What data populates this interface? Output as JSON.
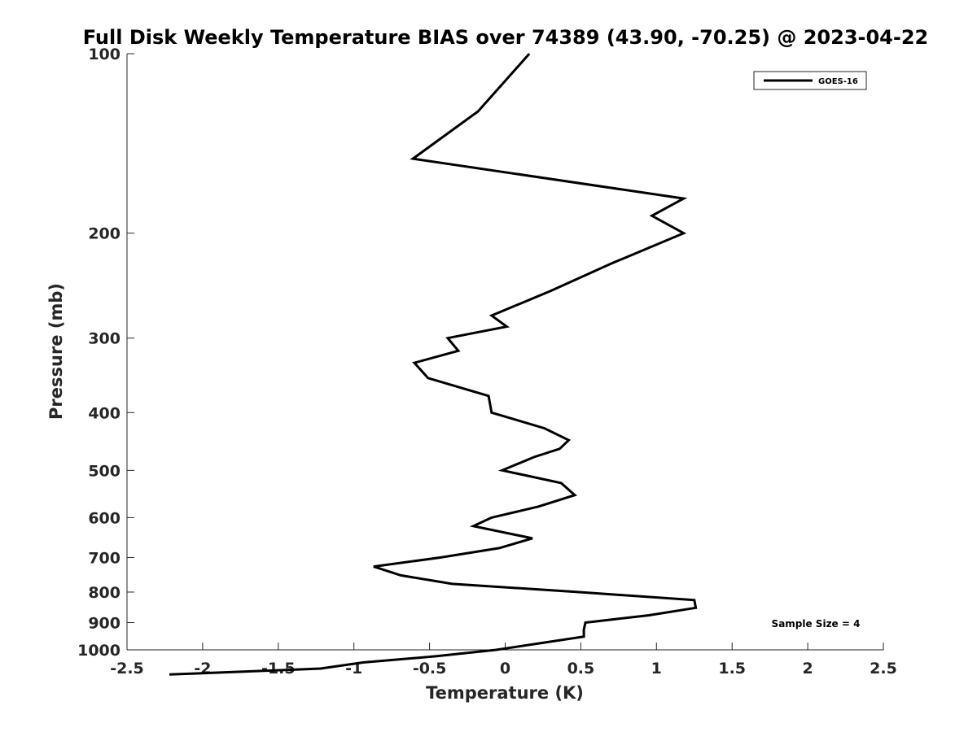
{
  "chart_data": {
    "type": "line",
    "title": "Full Disk Weekly Temperature BIAS over 74389 (43.90, -70.25) @ 2023-04-22",
    "xlabel": "Temperature (K)",
    "ylabel": "Pressure (mb)",
    "xlim": [
      -2.5,
      2.5
    ],
    "ylim": [
      100,
      1000
    ],
    "y_scale": "log",
    "y_reversed": true,
    "grid": false,
    "legend_position": "top-right",
    "x_ticks": [
      {
        "value": -2.5,
        "label": "-2.5"
      },
      {
        "value": -2,
        "label": "-2"
      },
      {
        "value": -1.5,
        "label": "-1.5"
      },
      {
        "value": -1,
        "label": "-1"
      },
      {
        "value": -0.5,
        "label": "-0.5"
      },
      {
        "value": 0,
        "label": "0"
      },
      {
        "value": 0.5,
        "label": "0.5"
      },
      {
        "value": 1,
        "label": "1"
      },
      {
        "value": 1.5,
        "label": "1.5"
      },
      {
        "value": 2,
        "label": "2"
      },
      {
        "value": 2.5,
        "label": "2.5"
      }
    ],
    "y_ticks": [
      {
        "value": 100,
        "label": "100"
      },
      {
        "value": 200,
        "label": "200"
      },
      {
        "value": 300,
        "label": "300"
      },
      {
        "value": 400,
        "label": "400"
      },
      {
        "value": 500,
        "label": "500"
      },
      {
        "value": 600,
        "label": "600"
      },
      {
        "value": 700,
        "label": "700"
      },
      {
        "value": 800,
        "label": "800"
      },
      {
        "value": 900,
        "label": "900"
      },
      {
        "value": 1000,
        "label": "1000"
      }
    ],
    "series": [
      {
        "name": "GOES-16",
        "color": "#000000",
        "points": [
          {
            "x": 0.16,
            "y": 100
          },
          {
            "x": -0.18,
            "y": 125
          },
          {
            "x": -0.61,
            "y": 150
          },
          {
            "x": 1.18,
            "y": 175
          },
          {
            "x": 0.97,
            "y": 187
          },
          {
            "x": 1.18,
            "y": 200
          },
          {
            "x": 0.7,
            "y": 225
          },
          {
            "x": 0.3,
            "y": 250
          },
          {
            "x": -0.09,
            "y": 275
          },
          {
            "x": 0.01,
            "y": 287
          },
          {
            "x": -0.38,
            "y": 300
          },
          {
            "x": -0.31,
            "y": 315
          },
          {
            "x": -0.6,
            "y": 330
          },
          {
            "x": -0.51,
            "y": 350
          },
          {
            "x": -0.11,
            "y": 375
          },
          {
            "x": -0.09,
            "y": 400
          },
          {
            "x": 0.26,
            "y": 425
          },
          {
            "x": 0.42,
            "y": 445
          },
          {
            "x": 0.36,
            "y": 460
          },
          {
            "x": 0.19,
            "y": 475
          },
          {
            "x": -0.02,
            "y": 500
          },
          {
            "x": 0.37,
            "y": 525
          },
          {
            "x": 0.46,
            "y": 550
          },
          {
            "x": 0.22,
            "y": 575
          },
          {
            "x": -0.09,
            "y": 600
          },
          {
            "x": -0.21,
            "y": 620
          },
          {
            "x": 0.18,
            "y": 650
          },
          {
            "x": -0.04,
            "y": 675
          },
          {
            "x": -0.43,
            "y": 700
          },
          {
            "x": -0.87,
            "y": 725
          },
          {
            "x": -0.69,
            "y": 750
          },
          {
            "x": -0.35,
            "y": 775
          },
          {
            "x": 0.49,
            "y": 800
          },
          {
            "x": 1.25,
            "y": 825
          },
          {
            "x": 1.26,
            "y": 850
          },
          {
            "x": 0.95,
            "y": 875
          },
          {
            "x": 0.53,
            "y": 900
          },
          {
            "x": 0.52,
            "y": 925
          },
          {
            "x": 0.52,
            "y": 950
          },
          {
            "x": 0.23,
            "y": 975
          },
          {
            "x": -0.06,
            "y": 1000
          },
          {
            "x": -0.46,
            "y": 1025
          },
          {
            "x": -0.94,
            "y": 1050
          },
          {
            "x": -1.22,
            "y": 1075
          },
          {
            "x": -2.22,
            "y": 1100
          }
        ]
      }
    ],
    "annotations": [
      {
        "text": "Sample Size = 4",
        "position": "bottom-right"
      }
    ]
  }
}
